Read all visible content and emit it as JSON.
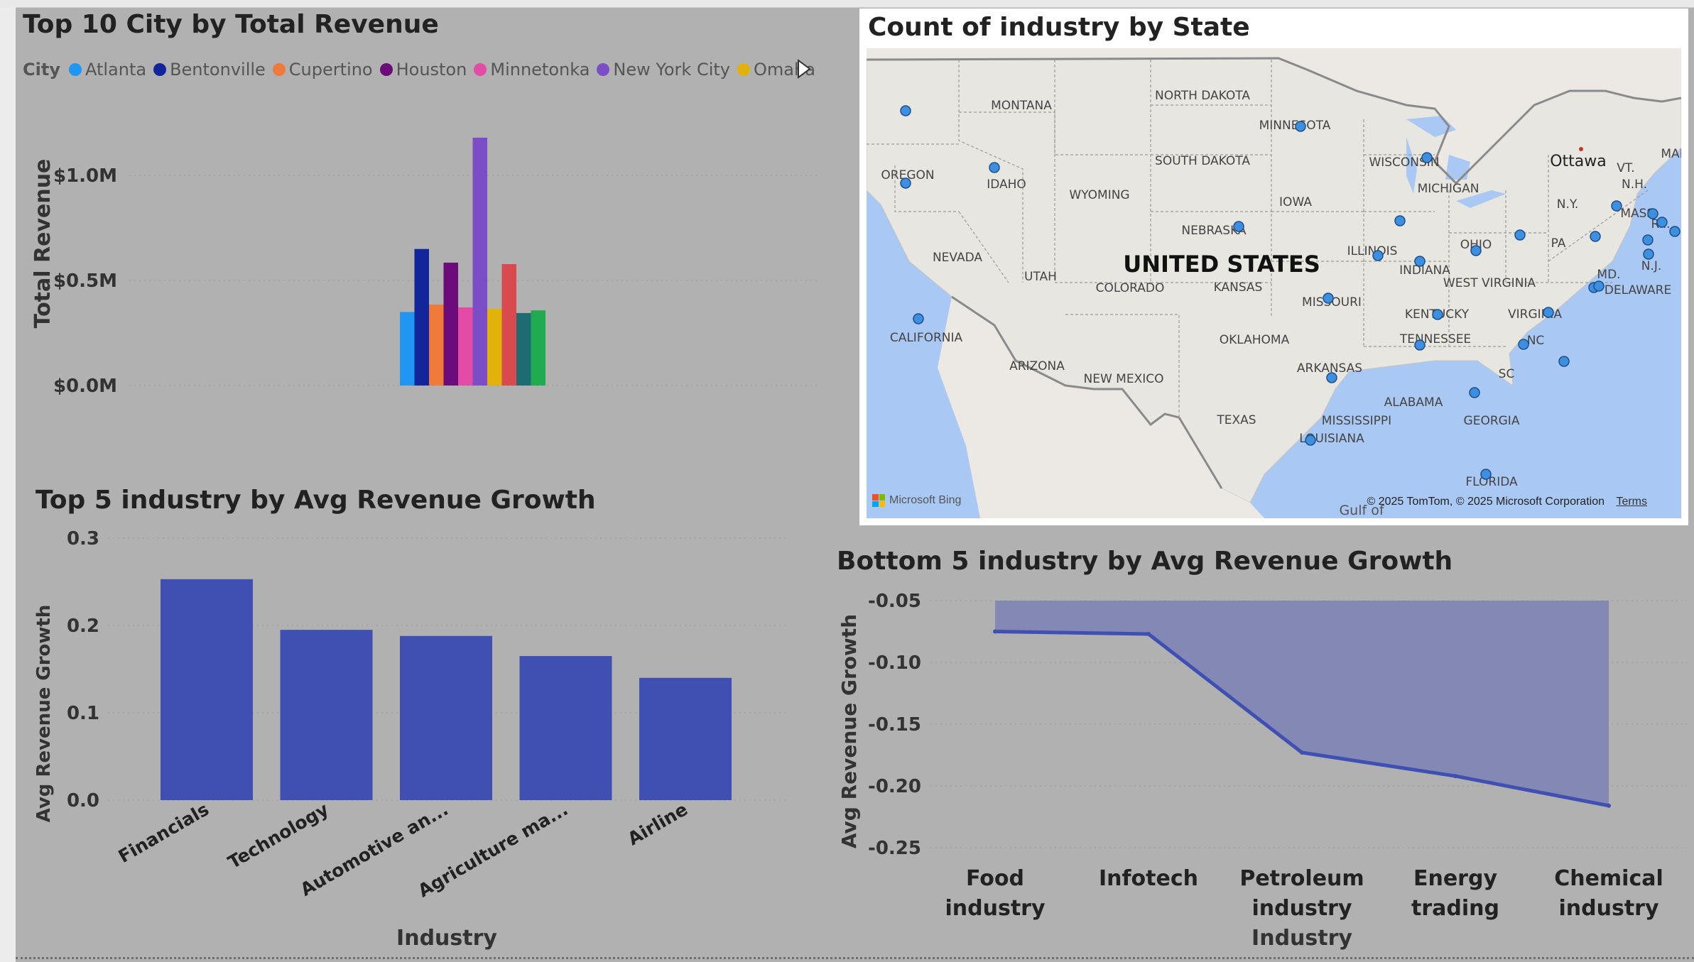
{
  "revenue_panel": {
    "title": "Top 10 City by Total Revenue",
    "legend_title": "City"
  },
  "map_panel": {
    "title": "Count of industry by State",
    "country_label": "UNITED STATES",
    "capital_label": "Ottawa",
    "gulf_label": "Gulf of",
    "bing_label": "Microsoft Bing",
    "copyright": "© 2025 TomTom, © 2025 Microsoft Corporation",
    "terms": "Terms",
    "state_labels": [
      "MONTANA",
      "NORTH DAKOTA",
      "MINNESOTA",
      "OREGON",
      "IDAHO",
      "SOUTH DAKOTA",
      "WYOMING",
      "WISCONSIN",
      "MICHIGAN",
      "IOWA",
      "NEBRASKA",
      "NEVADA",
      "UTAH",
      "COLORADO",
      "KANSAS",
      "ILLINOIS",
      "INDIANA",
      "OHIO",
      "MISSOURI",
      "CALIFORNIA",
      "KENTUCKY",
      "WEST VIRGINIA",
      "VIRGINIA",
      "ARIZONA",
      "NEW MEXICO",
      "OKLAHOMA",
      "TENNESSEE",
      "ARKANSAS",
      "NC",
      "SC",
      "ALABAMA",
      "MISSISSIPPI",
      "GEORGIA",
      "TEXAS",
      "LOUISIANA",
      "FLORIDA",
      "PA",
      "N.Y.",
      "VT.",
      "N.H.",
      "MAI",
      "MASS.",
      "R.I.",
      "N.J.",
      "MD.",
      "DELAWARE"
    ],
    "colors": {
      "water": "#a9c8f3",
      "land": "#e8e6e1",
      "dot": "#3d8fe0"
    }
  },
  "chart_data": [
    {
      "type": "bar",
      "title": "Top 10 City by Total Revenue",
      "legend_title": "City",
      "categories": [
        "Atlanta",
        "Bentonville",
        "Cupertino",
        "Houston",
        "Minnetonka",
        "New York City",
        "Omaha",
        "",
        "",
        ""
      ],
      "values": [
        350000,
        650000,
        385000,
        585000,
        372000,
        1180000,
        365000,
        578000,
        345000,
        358000
      ],
      "colors": [
        "#1f96f3",
        "#13259b",
        "#ef7a3a",
        "#6b0c7a",
        "#e24ca6",
        "#7b4ec7",
        "#e1b20a",
        "#d94a4f",
        "#1d6c73",
        "#21ab4f"
      ],
      "ylabel": "Total Revenue",
      "yticks": [
        "$0.0M",
        "$0.5M",
        "$1.0M"
      ],
      "ylim": [
        0,
        1200000
      ],
      "grid": true,
      "legend_position": "top-left"
    },
    {
      "type": "bar",
      "title": "Top 5 industry by Avg Revenue Growth",
      "categories": [
        "Financials",
        "Technology",
        "Automotive an...",
        "Agriculture ma...",
        "Airline"
      ],
      "values": [
        0.253,
        0.195,
        0.188,
        0.165,
        0.14
      ],
      "xlabel": "Industry",
      "ylabel": "Avg Revenue Growth",
      "yticks": [
        "0.0",
        "0.1",
        "0.2",
        "0.3"
      ],
      "ylim": [
        0,
        0.3
      ],
      "color": "#3f4fb2",
      "grid": true
    },
    {
      "type": "area",
      "title": "Bottom 5 industry by Avg Revenue Growth",
      "categories": [
        "Food industry",
        "Infotech",
        "Petroleum industry",
        "Energy trading",
        "Chemical industry"
      ],
      "values": [
        -0.075,
        -0.077,
        -0.173,
        -0.192,
        -0.216
      ],
      "xlabel": "Industry",
      "ylabel": "Avg Revenue Growth",
      "yticks": [
        "-0.25",
        "-0.20",
        "-0.15",
        "-0.10",
        "-0.05"
      ],
      "ylim": [
        -0.25,
        -0.05
      ],
      "line_color": "#3f4fb2",
      "fill_color": "#8388b5",
      "grid": true
    }
  ]
}
